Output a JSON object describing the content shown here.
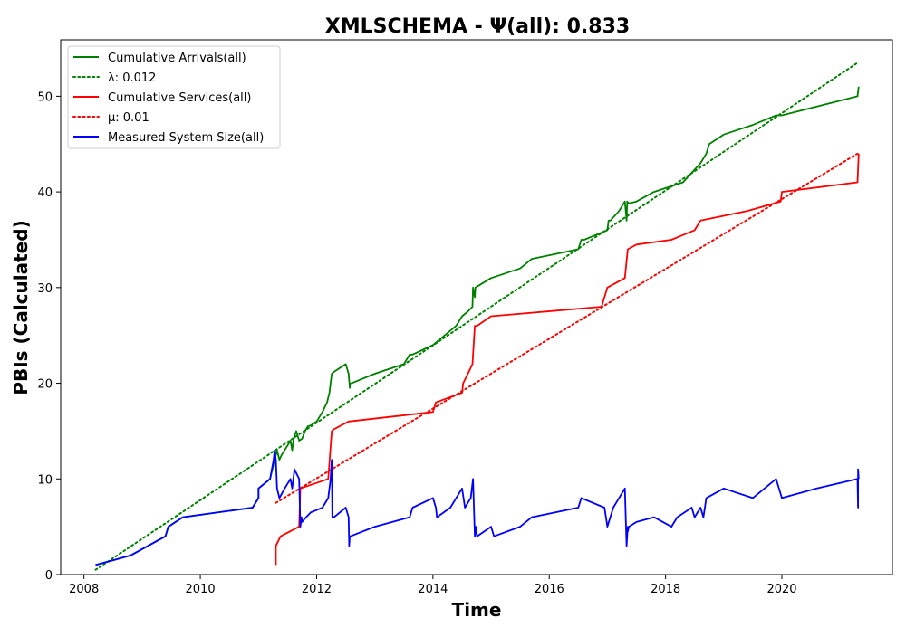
{
  "chart_data": {
    "type": "line",
    "title": "XMLSCHEMA -  Ψ(all): 0.833",
    "xlabel": "Time",
    "ylabel": "PBIs (Calculated)",
    "xlim": [
      2007.6,
      2021.9
    ],
    "ylim": [
      0,
      55.9
    ],
    "x_ticks": [
      2008,
      2010,
      2012,
      2014,
      2016,
      2018,
      2020
    ],
    "x_tick_labels": [
      "2008",
      "2010",
      "2012",
      "2014",
      "2016",
      "2018",
      "2020"
    ],
    "y_ticks": [
      0,
      10,
      20,
      30,
      40,
      50
    ],
    "y_tick_labels": [
      "0",
      "10",
      "20",
      "30",
      "40",
      "50"
    ],
    "grid": false,
    "legend_position": "top-left",
    "series": [
      {
        "name": "Cumulative Arrivals(all)",
        "style": "solid",
        "color": "#008000",
        "x": [
          2008.2,
          2008.8,
          2009.4,
          2009.45,
          2009.7,
          2010.9,
          2011.0,
          2011.0,
          2011.2,
          2011.28,
          2011.32,
          2011.36,
          2011.4,
          2011.5,
          2011.55,
          2011.58,
          2011.6,
          2011.62,
          2011.65,
          2011.7,
          2011.75,
          2011.8,
          2011.85,
          2011.9,
          2012.0,
          2012.1,
          2012.18,
          2012.22,
          2012.26,
          2012.3,
          2012.5,
          2012.55,
          2012.57,
          2012.57,
          2012.6,
          2013.0,
          2013.5,
          2013.6,
          2013.65,
          2014.0,
          2014.4,
          2014.5,
          2014.6,
          2014.68,
          2014.69,
          2014.72,
          2014.73,
          2014.73,
          2015.0,
          2015.5,
          2015.7,
          2016.5,
          2016.55,
          2016.6,
          2017.0,
          2017.02,
          2017.05,
          2017.2,
          2017.3,
          2017.33,
          2017.34,
          2017.37,
          2017.5,
          2017.8,
          2018.3,
          2018.6,
          2018.7,
          2018.75,
          2019.0,
          2019.5,
          2019.9,
          2020.0,
          2021.3,
          2021.32
        ],
        "values": [
          1,
          2,
          4,
          5,
          6,
          7,
          8,
          9,
          10,
          12,
          13,
          12,
          12.5,
          13.5,
          14,
          13,
          14,
          14.5,
          15,
          14,
          14.2,
          15,
          15.5,
          15.6,
          16,
          17,
          18,
          19,
          21,
          21.2,
          22,
          21,
          19.5,
          20,
          20,
          21,
          22,
          23,
          23,
          24,
          26,
          27,
          27.5,
          28,
          30,
          29,
          30,
          30,
          31,
          32,
          33,
          34,
          35,
          35,
          36,
          37,
          37,
          38,
          39,
          37,
          39,
          38.8,
          39,
          40,
          41,
          43,
          44,
          45,
          46,
          47,
          48,
          48,
          50,
          51
        ]
      },
      {
        "name": "λ: 0.012",
        "style": "dotted",
        "color": "#008000",
        "x": [
          2008.2,
          2021.3
        ],
        "values": [
          0.5,
          53.5
        ]
      },
      {
        "name": "Cumulative Services(all)",
        "style": "solid",
        "color": "#ff0000",
        "x": [
          2011.3,
          2011.3,
          2011.38,
          2011.7,
          2011.72,
          2012.2,
          2012.26,
          2012.3,
          2012.55,
          2014.0,
          2014.05,
          2014.5,
          2014.52,
          2014.6,
          2014.68,
          2014.72,
          2014.76,
          2015.0,
          2016.9,
          2016.95,
          2017.0,
          2017.3,
          2017.35,
          2017.5,
          2018.1,
          2018.5,
          2018.6,
          2019.4,
          2019.98,
          2020.0,
          2021.3,
          2021.32
        ],
        "values": [
          1,
          3,
          4,
          5,
          9,
          10,
          15,
          15.2,
          16,
          17,
          18,
          19,
          20,
          21,
          22,
          26,
          26,
          27,
          28,
          29,
          30,
          31,
          34,
          34.5,
          35,
          36,
          37,
          38,
          39,
          40,
          41,
          44
        ]
      },
      {
        "name": "μ: 0.01",
        "style": "dotted",
        "color": "#ff0000",
        "x": [
          2011.3,
          2021.3
        ],
        "values": [
          7.5,
          44
        ]
      },
      {
        "name": "Measured System Size(all)",
        "style": "solid",
        "color": "#0000ff",
        "x": [
          2008.2,
          2008.8,
          2009.4,
          2009.45,
          2009.7,
          2010.9,
          2011.0,
          2011.0,
          2011.2,
          2011.26,
          2011.28,
          2011.3,
          2011.32,
          2011.34,
          2011.36,
          2011.45,
          2011.55,
          2011.58,
          2011.6,
          2011.62,
          2011.66,
          2011.7,
          2011.72,
          2011.74,
          2011.75,
          2011.82,
          2011.9,
          2012.1,
          2012.2,
          2012.24,
          2012.26,
          2012.27,
          2012.3,
          2012.5,
          2012.55,
          2012.56,
          2012.57,
          2012.58,
          2013.0,
          2013.6,
          2013.65,
          2014.0,
          2014.05,
          2014.07,
          2014.3,
          2014.5,
          2014.55,
          2014.65,
          2014.69,
          2014.72,
          2014.74,
          2014.76,
          2015.0,
          2015.05,
          2015.5,
          2015.7,
          2016.5,
          2016.55,
          2016.95,
          2017.0,
          2017.1,
          2017.15,
          2017.3,
          2017.33,
          2017.35,
          2017.35,
          2017.37,
          2017.5,
          2017.8,
          2018.1,
          2018.2,
          2018.45,
          2018.5,
          2018.55,
          2018.6,
          2018.65,
          2018.7,
          2019.0,
          2019.5,
          2019.7,
          2019.9,
          2020.0,
          2020.6,
          2021.3,
          2021.31,
          2021.31,
          2021.32
        ],
        "values": [
          1,
          2,
          4,
          5,
          6,
          7,
          8,
          9,
          10,
          12,
          13,
          12,
          9,
          8.5,
          8,
          9,
          10,
          9,
          10,
          11,
          10.5,
          10,
          5,
          6,
          5.5,
          6,
          6.5,
          7,
          8,
          10,
          12,
          6,
          6,
          7,
          6,
          3,
          4,
          4,
          5,
          6,
          7,
          8,
          7,
          6,
          7,
          9,
          7,
          8,
          10,
          4,
          5,
          4,
          5,
          4,
          5,
          6,
          7,
          8,
          7,
          5,
          7,
          7.5,
          9,
          3,
          5,
          4.5,
          5,
          5.5,
          6,
          5,
          6,
          7,
          6,
          6.5,
          7,
          6,
          8,
          9,
          8,
          9,
          10,
          8,
          9,
          10,
          7,
          11,
          10
        ]
      }
    ]
  }
}
